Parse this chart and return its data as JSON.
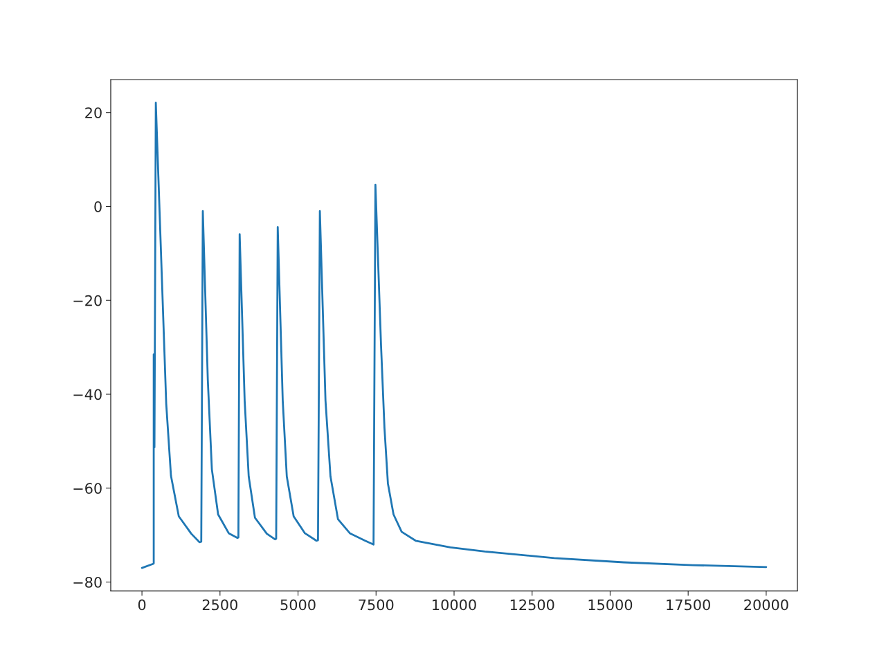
{
  "chart_data": {
    "type": "line",
    "xlim": [
      -1000,
      21000
    ],
    "ylim": [
      -81.9,
      27.0
    ],
    "xticks": [
      0,
      2500,
      5000,
      7500,
      10000,
      12500,
      15000,
      17500,
      20000
    ],
    "yticks": [
      {
        "value": -80,
        "label": "−80"
      },
      {
        "value": -60,
        "label": "−60"
      },
      {
        "value": -40,
        "label": "−40"
      },
      {
        "value": -20,
        "label": "−20"
      },
      0,
      20
    ],
    "grid": false,
    "legend": false,
    "series": [
      {
        "color": "#1f77b4",
        "x": [
          0,
          370,
          377,
          377,
          400,
          444,
          777,
          930,
          1180,
          1580,
          1840,
          1900,
          1950,
          2110,
          2240,
          2440,
          2780,
          3060,
          3090,
          3130,
          3290,
          3420,
          3620,
          4000,
          4260,
          4300,
          4350,
          4510,
          4640,
          4860,
          5220,
          5590,
          5640,
          5700,
          5880,
          6040,
          6280,
          6660,
          7150,
          7420,
          7480,
          7660,
          7770,
          7880,
          8060,
          8320,
          8770,
          9880,
          10990,
          13210,
          15430,
          17650,
          20000
        ],
        "values": [
          -77,
          -76.1,
          -76,
          -31.5,
          -51.3,
          22.1,
          -42,
          -57.4,
          -66,
          -69.7,
          -71.5,
          -71.4,
          -1,
          -37,
          -56,
          -65.6,
          -69.6,
          -70.6,
          -70.5,
          -5.9,
          -41.3,
          -57.5,
          -66.3,
          -69.7,
          -70.9,
          -70.8,
          -4.4,
          -41.3,
          -57.5,
          -66,
          -69.6,
          -71.2,
          -71.1,
          -1,
          -41.3,
          -57.5,
          -66.6,
          -69.6,
          -71.2,
          -72,
          4.6,
          -29.6,
          -47.2,
          -59,
          -65.6,
          -69.3,
          -71.2,
          -72.6,
          -73.5,
          -74.9,
          -75.8,
          -76.4,
          -76.8
        ]
      }
    ]
  }
}
